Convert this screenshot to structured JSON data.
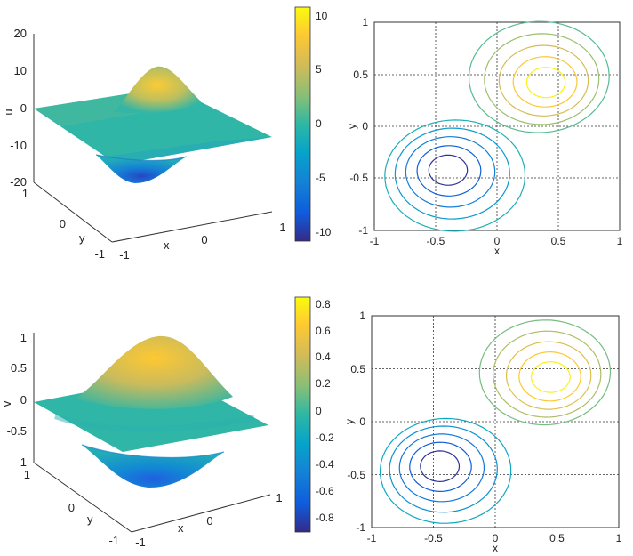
{
  "chart_data": [
    {
      "id": "u-surface",
      "type": "surface3d",
      "zlabel": "u",
      "xlabel": "x",
      "ylabel": "y",
      "xlim": [
        -1,
        1
      ],
      "ylim": [
        -1,
        1
      ],
      "zlim": [
        -20,
        20
      ],
      "z_ticks": [
        "20",
        "10",
        "0",
        "-10",
        "-20"
      ],
      "x_ticks": [
        "-1",
        "0",
        "1"
      ],
      "y_ticks": [
        "1",
        "0",
        "-1"
      ],
      "peak": 10.5,
      "trough": -10.5,
      "colormap": "parula",
      "colorbar": {
        "min": -11,
        "max": 11,
        "ticks": [
          "10",
          "5",
          "0",
          "-5",
          "-10"
        ]
      }
    },
    {
      "id": "u-contour",
      "type": "contour",
      "xlabel": "x",
      "ylabel": "y",
      "xlim": [
        -1,
        1
      ],
      "ylim": [
        -1,
        1
      ],
      "grid": true,
      "x_ticks": [
        "-1",
        "-0.5",
        "0",
        "0.5",
        "1"
      ],
      "y_ticks": [
        "1",
        "0.5",
        "0",
        "-0.5",
        "-1"
      ],
      "levels": [
        -9,
        -7,
        -5,
        -3,
        -1,
        1,
        3,
        5,
        7,
        9
      ],
      "peak_at": [
        0.4,
        0.42
      ],
      "trough_at": [
        -0.4,
        -0.42
      ]
    },
    {
      "id": "v-surface",
      "type": "surface3d",
      "zlabel": "v",
      "xlabel": "x",
      "ylabel": "y",
      "xlim": [
        -1,
        1
      ],
      "ylim": [
        -1,
        1
      ],
      "zlim": [
        -1,
        1
      ],
      "z_ticks": [
        "1",
        "0.5",
        "0",
        "-0.5",
        "-1"
      ],
      "x_ticks": [
        "-1",
        "0",
        "1"
      ],
      "y_ticks": [
        "1",
        "0",
        "-1"
      ],
      "peak": 0.85,
      "trough": -0.85,
      "colormap": "parula",
      "colorbar": {
        "min": -0.9,
        "max": 0.9,
        "ticks": [
          "0.8",
          "0.6",
          "0.4",
          "0.2",
          "0",
          "-0.2",
          "-0.4",
          "-0.6",
          "-0.8"
        ]
      }
    },
    {
      "id": "v-contour",
      "type": "contour",
      "xlabel": "x",
      "ylabel": "y",
      "xlim": [
        -1,
        1
      ],
      "ylim": [
        -1,
        1
      ],
      "grid": true,
      "x_ticks": [
        "-1",
        "-0.5",
        "0",
        "0.5",
        "1"
      ],
      "y_ticks": [
        "1",
        "0.5",
        "0",
        "-0.5",
        "-1"
      ],
      "levels": [
        -0.75,
        -0.6,
        -0.45,
        -0.3,
        -0.15,
        0.15,
        0.3,
        0.45,
        0.6,
        0.75
      ],
      "peak_at": [
        0.45,
        0.42
      ],
      "trough_at": [
        -0.45,
        -0.42
      ]
    }
  ]
}
